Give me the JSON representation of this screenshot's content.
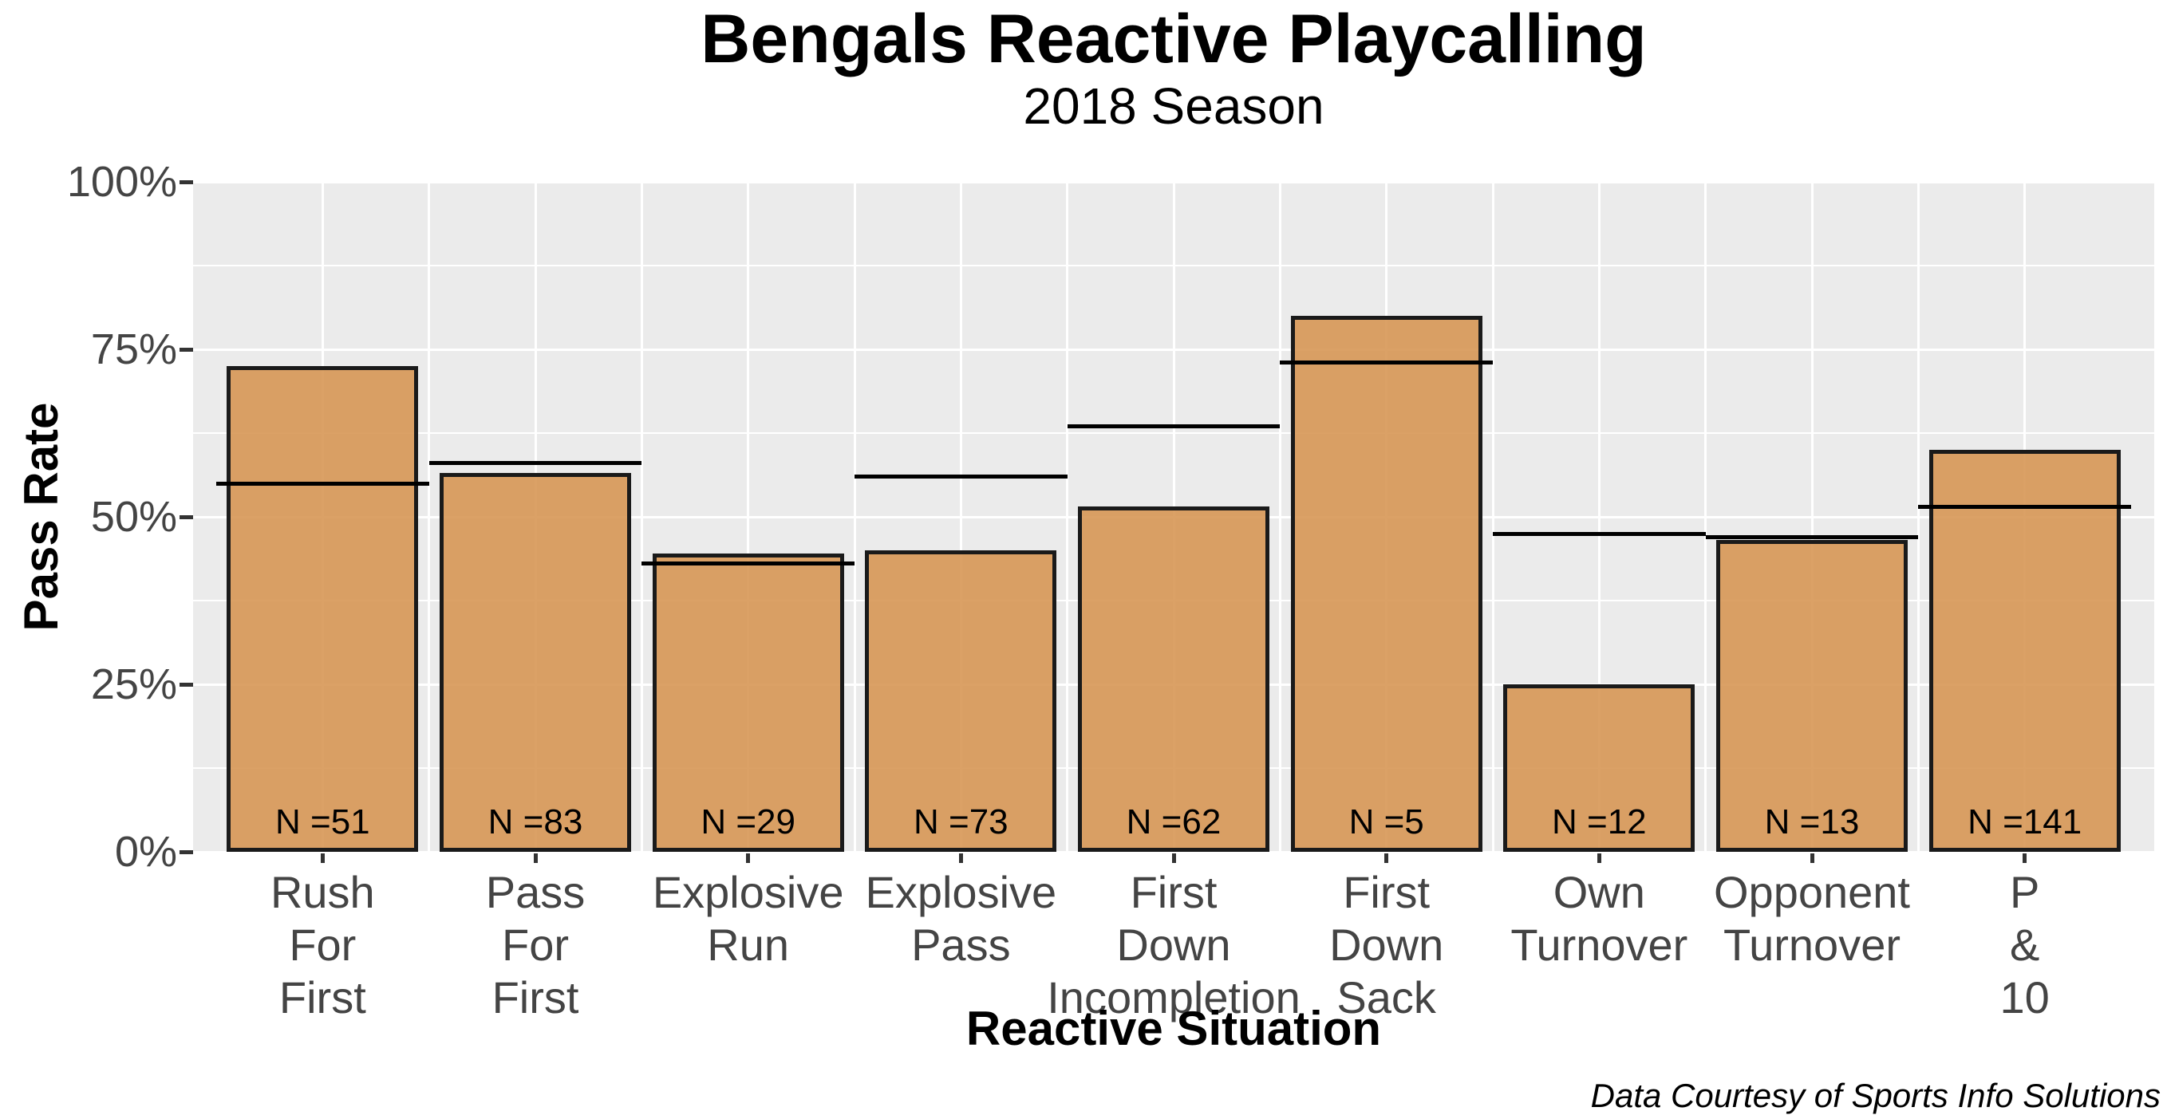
{
  "header": {
    "title": "Bengals Reactive Playcalling",
    "subtitle": "2018 Season"
  },
  "caption": "Data Courtesy of Sports Info Solutions",
  "colors": {
    "bar_fill": "#D79755",
    "bar_fill_alpha": 0.9,
    "bar_border": "#1A1A1A",
    "mean_line": "#000000",
    "panel_background": "#EBEBEB",
    "gridline": "#FFFFFF",
    "tick_label_text": "#444444",
    "axis_title_text": "#000000",
    "tick_mark": "#333333"
  },
  "chart_data": {
    "type": "bar",
    "title": "Bengals Reactive Playcalling",
    "subtitle": "2018 Season",
    "xlabel": "Reactive Situation",
    "ylabel": "Pass Rate",
    "caption": "Data Courtesy of Sports Info Solutions",
    "ylim": [
      0,
      100
    ],
    "grid": "on",
    "legend": "none",
    "bar_width_fraction": 0.9,
    "yticks": [
      {
        "value": 0,
        "label": "0%"
      },
      {
        "value": 25,
        "label": "25%"
      },
      {
        "value": 50,
        "label": "50%"
      },
      {
        "value": 75,
        "label": "75%"
      },
      {
        "value": 100,
        "label": "100%"
      }
    ],
    "yticks_minor": [
      12.5,
      37.5,
      62.5,
      87.5
    ],
    "categories": [
      {
        "slug": "rush-for-first",
        "label": "Rush For First",
        "label_lines": [
          "Rush",
          "For",
          "First"
        ],
        "pass_rate": 72.5,
        "ref_line": 55,
        "n": 51,
        "n_label": "N =51"
      },
      {
        "slug": "pass-for-first",
        "label": "Pass For First",
        "label_lines": [
          "Pass",
          "For",
          "First"
        ],
        "pass_rate": 56.5,
        "ref_line": 58,
        "n": 83,
        "n_label": "N =83"
      },
      {
        "slug": "explosive-run",
        "label": "Explosive Run",
        "label_lines": [
          "Explosive",
          "Run"
        ],
        "pass_rate": 44.5,
        "ref_line": 43,
        "n": 29,
        "n_label": "N =29"
      },
      {
        "slug": "explosive-pass",
        "label": "Explosive Pass",
        "label_lines": [
          "Explosive",
          "Pass"
        ],
        "pass_rate": 45,
        "ref_line": 56,
        "n": 73,
        "n_label": "N =73"
      },
      {
        "slug": "first-down-incompletion",
        "label": "First Down Incompletion",
        "label_lines": [
          "First",
          "Down",
          "Incompletion"
        ],
        "pass_rate": 51.5,
        "ref_line": 63.5,
        "n": 62,
        "n_label": "N =62"
      },
      {
        "slug": "first-down-sack",
        "label": "First Down Sack",
        "label_lines": [
          "First",
          "Down",
          "Sack"
        ],
        "pass_rate": 80,
        "ref_line": 73,
        "n": 5,
        "n_label": "N =5"
      },
      {
        "slug": "own-turnover",
        "label": "Own Turnover",
        "label_lines": [
          "Own",
          "Turnover"
        ],
        "pass_rate": 25,
        "ref_line": 47.5,
        "n": 12,
        "n_label": "N =12"
      },
      {
        "slug": "opponent-turnover",
        "label": "Opponent Turnover",
        "label_lines": [
          "Opponent",
          "Turnover"
        ],
        "pass_rate": 46.5,
        "ref_line": 47,
        "n": 13,
        "n_label": "N =13"
      },
      {
        "slug": "p-and-10",
        "label": "P & 10",
        "label_lines": [
          "P",
          "&",
          "10"
        ],
        "pass_rate": 60,
        "ref_line": 51.5,
        "n": 141,
        "n_label": "N =141"
      }
    ]
  }
}
